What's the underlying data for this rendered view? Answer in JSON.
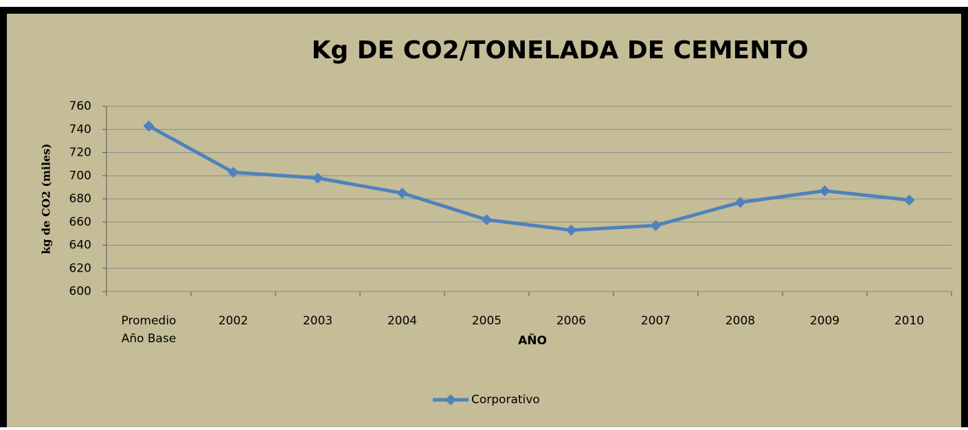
{
  "chart_data": {
    "type": "line",
    "title": "Kg DE CO2/TONELADA DE CEMENTO",
    "x_label": "AÑO",
    "y_label": "kg de CO2 (miles)",
    "categories": [
      "Promedio Año Base",
      "2002",
      "2003",
      "2004",
      "2005",
      "2006",
      "2007",
      "2008",
      "2009",
      "2010"
    ],
    "series": [
      {
        "name": "Corporativo",
        "color": "#4f81bd",
        "values": [
          743,
          703,
          698,
          685,
          662,
          653,
          657,
          677,
          687,
          679
        ]
      }
    ],
    "ylim": [
      600,
      760
    ],
    "yticks": [
      600,
      620,
      640,
      660,
      680,
      700,
      720,
      740,
      760
    ],
    "grid": true,
    "legend": "bottom"
  }
}
